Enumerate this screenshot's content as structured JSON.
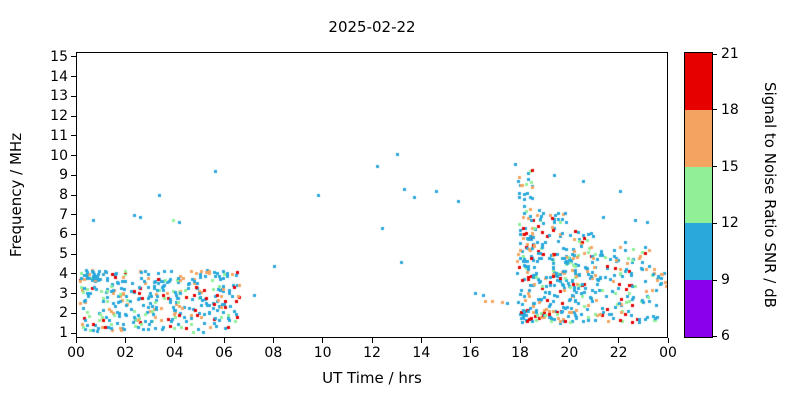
{
  "title": "2025-02-22",
  "axes": {
    "x_label": "UT Time / hrs",
    "y_label": "Frequency / MHz",
    "x_ticks": [
      "00",
      "02",
      "04",
      "06",
      "08",
      "10",
      "12",
      "14",
      "16",
      "18",
      "20",
      "22",
      "00"
    ],
    "x_tick_hours": [
      0,
      2,
      4,
      6,
      8,
      10,
      12,
      14,
      16,
      18,
      20,
      22,
      24
    ],
    "y_ticks": [
      "1",
      "2",
      "3",
      "4",
      "5",
      "6",
      "7",
      "8",
      "9",
      "10",
      "11",
      "12",
      "13",
      "14",
      "15"
    ],
    "y_tick_values": [
      1,
      2,
      3,
      4,
      5,
      6,
      7,
      8,
      9,
      10,
      11,
      12,
      13,
      14,
      15
    ],
    "x_range": [
      0,
      24
    ],
    "y_draw_range": [
      0.75,
      15.25
    ]
  },
  "colorbar": {
    "label": "Signal to Noise Ratio SNR / dB",
    "ticks": [
      "6",
      "9",
      "12",
      "15",
      "18",
      "21"
    ],
    "tick_values": [
      6,
      9,
      12,
      15,
      18,
      21
    ],
    "range": [
      6,
      21
    ],
    "bands": [
      {
        "from": 6,
        "to": 9,
        "color": "#8B00EB"
      },
      {
        "from": 9,
        "to": 12,
        "color": "#29A8DC"
      },
      {
        "from": 12,
        "to": 15,
        "color": "#8FF098"
      },
      {
        "from": 15,
        "to": 18,
        "color": "#F4A460"
      },
      {
        "from": 18,
        "to": 21,
        "color": "#E60000"
      }
    ]
  },
  "chart_data": {
    "type": "scatter",
    "title": "2025-02-22",
    "xlabel": "UT Time / hrs",
    "ylabel": "Frequency / MHz",
    "zlabel": "Signal to Noise Ratio SNR / dB",
    "xlim": [
      0,
      24
    ],
    "ylim": [
      1,
      15
    ],
    "zlim": [
      6,
      21
    ],
    "marker": "square",
    "marker_px": 3,
    "seed": 42,
    "points": [
      [
        0.65,
        6.7,
        10
      ],
      [
        2.3,
        7.0,
        10
      ],
      [
        2.55,
        6.9,
        10
      ],
      [
        3.9,
        6.7,
        13
      ],
      [
        4.15,
        6.6,
        10
      ],
      [
        3.35,
        8.0,
        10
      ],
      [
        5.6,
        9.2,
        10
      ],
      [
        5.3,
        4.15,
        10
      ],
      [
        6.1,
        4.0,
        10
      ],
      [
        7.2,
        2.9,
        10
      ],
      [
        8.0,
        4.4,
        10
      ],
      [
        9.8,
        8.0,
        10
      ],
      [
        12.2,
        9.5,
        10
      ],
      [
        12.4,
        6.3,
        10
      ],
      [
        13.0,
        10.1,
        10
      ],
      [
        13.3,
        8.3,
        10
      ],
      [
        13.7,
        7.9,
        10
      ],
      [
        14.6,
        8.2,
        10
      ],
      [
        15.5,
        7.7,
        10
      ],
      [
        13.2,
        4.6,
        10
      ],
      [
        16.2,
        3.0,
        10
      ],
      [
        16.5,
        2.9,
        10
      ],
      [
        16.6,
        2.6,
        16
      ],
      [
        16.9,
        2.6,
        16
      ],
      [
        17.3,
        2.55,
        16
      ],
      [
        17.5,
        2.5,
        10
      ],
      [
        17.8,
        9.6,
        10
      ],
      [
        19.4,
        9.0,
        10
      ],
      [
        20.6,
        8.7,
        10
      ],
      [
        22.1,
        8.2,
        10
      ],
      [
        21.4,
        6.9,
        10
      ],
      [
        22.7,
        6.7,
        10
      ],
      [
        23.2,
        6.6,
        10
      ],
      [
        21.0,
        5.9,
        10
      ],
      [
        22.3,
        5.6,
        10
      ],
      [
        23.0,
        4.6,
        10
      ]
    ],
    "clusters": [
      {
        "t": [
          0.1,
          6.6
        ],
        "f": [
          1.0,
          4.15
        ],
        "count": 380,
        "mix": [
          [
            10,
            0.6
          ],
          [
            13,
            0.12
          ],
          [
            16,
            0.18
          ],
          [
            19,
            0.1
          ]
        ]
      },
      {
        "t": [
          0.15,
          1.2
        ],
        "f": [
          3.6,
          4.2
        ],
        "count": 25,
        "mix": [
          [
            10,
            0.7
          ],
          [
            16,
            0.2
          ],
          [
            19,
            0.1
          ]
        ]
      },
      {
        "t": [
          17.9,
          20.3
        ],
        "f": [
          1.4,
          5.0
        ],
        "count": 210,
        "mix": [
          [
            10,
            0.58
          ],
          [
            13,
            0.12
          ],
          [
            16,
            0.18
          ],
          [
            19,
            0.12
          ]
        ]
      },
      {
        "t": [
          20.3,
          23.6
        ],
        "f": [
          1.5,
          4.3
        ],
        "count": 130,
        "mix": [
          [
            10,
            0.62
          ],
          [
            13,
            0.12
          ],
          [
            16,
            0.16
          ],
          [
            19,
            0.1
          ]
        ]
      },
      {
        "t": [
          17.95,
          18.6
        ],
        "f": [
          5.0,
          9.3
        ],
        "count": 50,
        "mix": [
          [
            10,
            0.55
          ],
          [
            13,
            0.1
          ],
          [
            16,
            0.2
          ],
          [
            19,
            0.15
          ]
        ]
      },
      {
        "t": [
          18.4,
          19.9
        ],
        "f": [
          4.5,
          7.3
        ],
        "count": 70,
        "mix": [
          [
            10,
            0.55
          ],
          [
            13,
            0.1
          ],
          [
            16,
            0.2
          ],
          [
            19,
            0.15
          ]
        ]
      },
      {
        "t": [
          19.9,
          21.3
        ],
        "f": [
          4.3,
          6.2
        ],
        "count": 40,
        "mix": [
          [
            10,
            0.6
          ],
          [
            13,
            0.12
          ],
          [
            16,
            0.18
          ],
          [
            19,
            0.1
          ]
        ]
      },
      {
        "t": [
          21.3,
          23.4
        ],
        "f": [
          4.2,
          5.4
        ],
        "count": 28,
        "mix": [
          [
            10,
            0.65
          ],
          [
            13,
            0.1
          ],
          [
            16,
            0.15
          ],
          [
            19,
            0.1
          ]
        ]
      },
      {
        "t": [
          23.5,
          24.0
        ],
        "f": [
          3.1,
          4.05
        ],
        "count": 14,
        "mix": [
          [
            10,
            0.8
          ],
          [
            16,
            0.2
          ]
        ]
      }
    ]
  }
}
